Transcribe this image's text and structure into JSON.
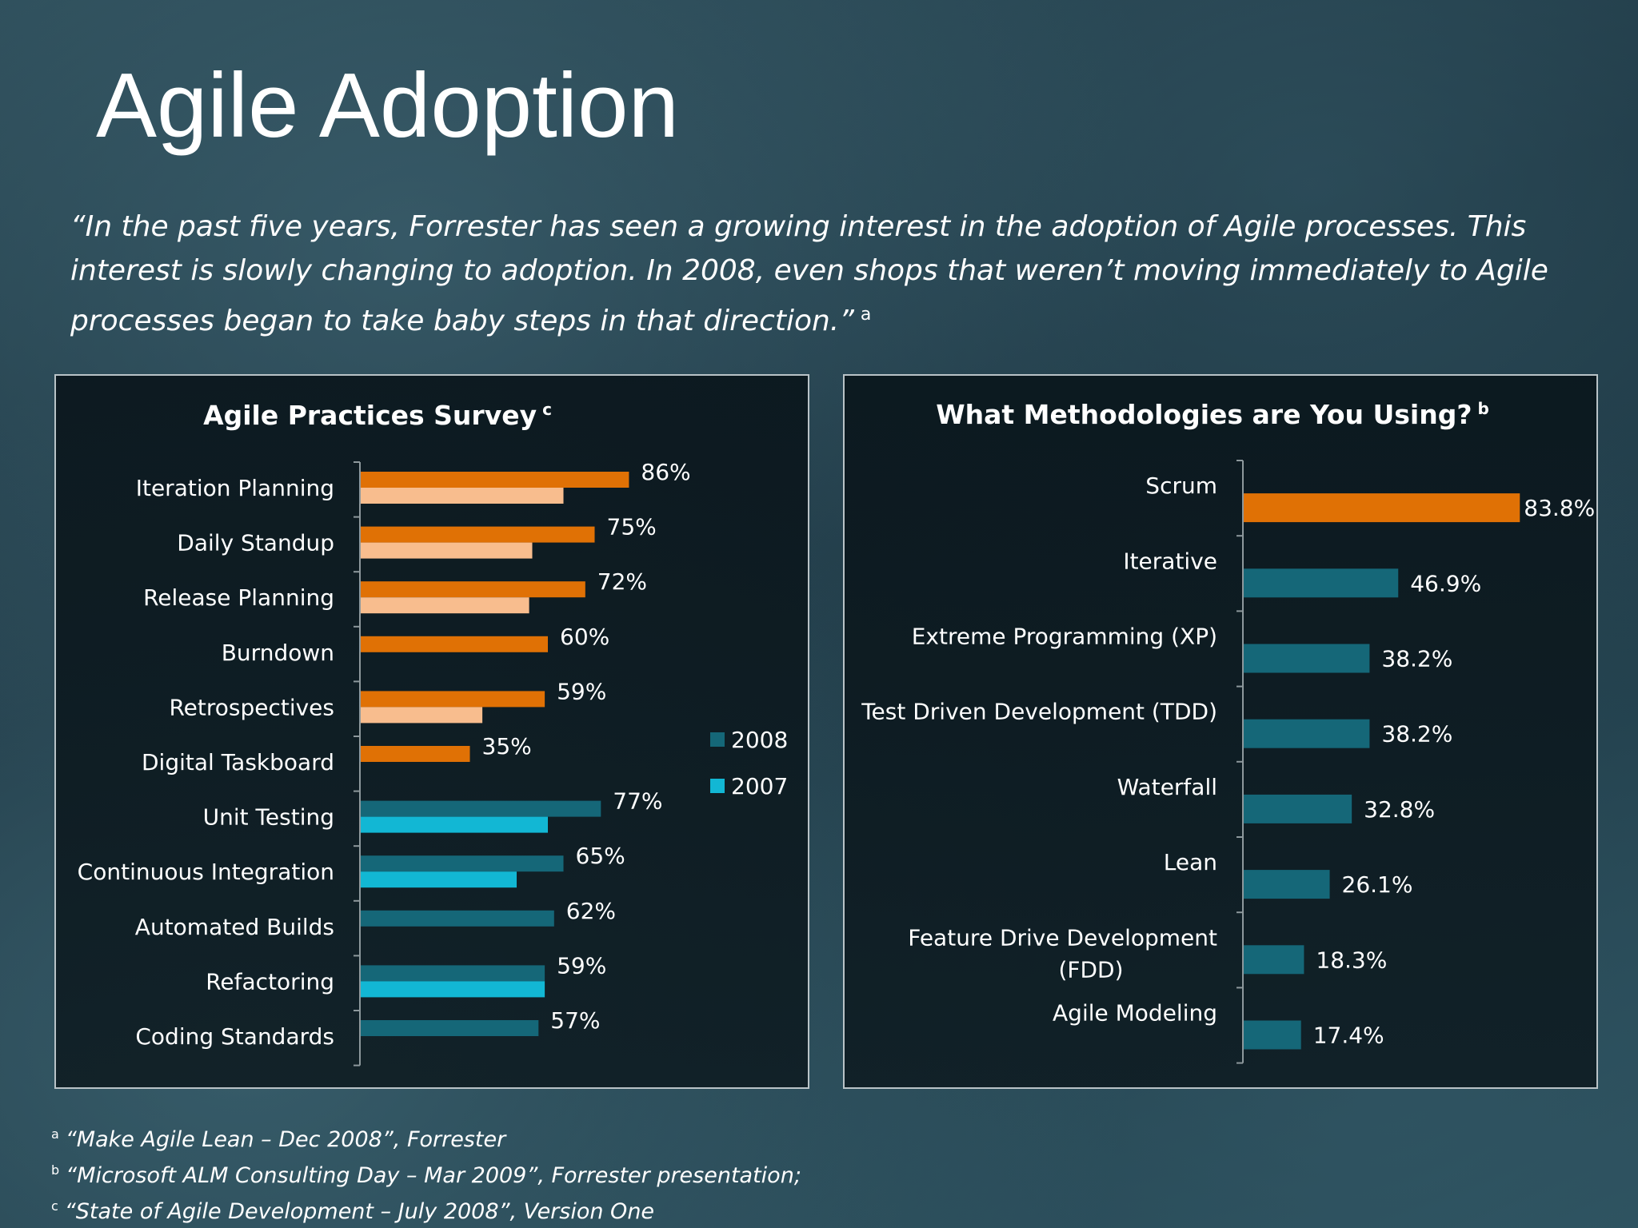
{
  "slide": {
    "title": "Agile Adoption",
    "quote": "“In the past five years, Forrester has seen a growing interest in the adoption of Agile processes. This interest is slowly changing to adoption. In 2008, even shops that weren’t moving immediately to Agile processes began to take baby steps in that direction.”",
    "quote_ref": "a",
    "footnotes": [
      {
        "mark": "a",
        "text": "“Make Agile Lean – Dec 2008”, Forrester"
      },
      {
        "mark": "b",
        "text": "“Microsoft ALM Consulting Day – Mar 2009”, Forrester presentation;"
      },
      {
        "mark": "c",
        "text": "“State of Agile Development – July 2008”, Version One"
      }
    ]
  },
  "colors": {
    "orange_2008": "#e07105",
    "orange_2007": "#f8bd8e",
    "teal_2008": "#156778",
    "cyan_2007": "#12b7d4",
    "legend_2008": "#156778",
    "legend_2007": "#12b7d4"
  },
  "chart_data": [
    {
      "type": "bar",
      "orientation": "horizontal",
      "title": "Agile Practices Survey",
      "title_ref": "c",
      "xlim": [
        0,
        100
      ],
      "categories": [
        "Iteration Planning",
        "Daily Standup",
        "Release Planning",
        "Burndown",
        "Retrospectives",
        "Digital Taskboard",
        "Unit Testing",
        "Continuous Integration",
        "Automated Builds",
        "Refactoring",
        "Coding Standards"
      ],
      "series": [
        {
          "name": "2008",
          "values": [
            86,
            75,
            72,
            60,
            59,
            35,
            77,
            65,
            62,
            59,
            57
          ]
        },
        {
          "name": "2007",
          "values": [
            65,
            55,
            54,
            null,
            39,
            null,
            60,
            50,
            null,
            59,
            null
          ]
        }
      ],
      "data_labels": [
        "86%",
        "75%",
        "72%",
        "60%",
        "59%",
        "35%",
        "77%",
        "65%",
        "62%",
        "59%",
        "57%"
      ],
      "legend": [
        "2008",
        "2007"
      ],
      "legend_position": "right"
    },
    {
      "type": "bar",
      "orientation": "horizontal",
      "title": "What Methodologies are You Using?",
      "title_ref": "b",
      "xlim": [
        0,
        100
      ],
      "categories": [
        "Scrum",
        "Iterative",
        "Extreme Programming (XP)",
        "Test Driven Development (TDD)",
        "Waterfall",
        "Lean",
        "Feature Drive Development (FDD)",
        "Agile Modeling"
      ],
      "series": [
        {
          "name": "Usage",
          "values": [
            83.8,
            46.9,
            38.2,
            38.2,
            32.8,
            26.1,
            18.3,
            17.4
          ]
        }
      ],
      "data_labels": [
        "83.8%",
        "46.9%",
        "38.2%",
        "38.2%",
        "32.8%",
        "26.1%",
        "18.3%",
        "17.4%"
      ]
    }
  ]
}
